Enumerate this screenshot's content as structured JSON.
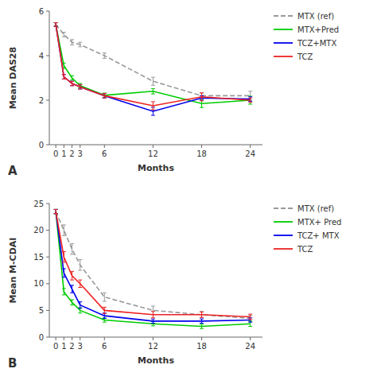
{
  "chart_data": [
    {
      "type": "line",
      "xlabel": "Months",
      "ylabel": "Mean DAS28",
      "annotations": [
        "A"
      ],
      "x": [
        0,
        1,
        2,
        3,
        6,
        12,
        18,
        24
      ],
      "xlim": [
        -0.8,
        25.5
      ],
      "xticks": [
        0,
        1,
        2,
        3,
        6,
        12,
        18,
        24
      ],
      "ylim": [
        0,
        6
      ],
      "yticks": [
        0,
        2,
        4,
        6
      ],
      "grid": false,
      "legend": "right",
      "series": [
        {
          "name": "MTX (ref)",
          "color": "#999999",
          "line_style": "dashed",
          "values": [
            5.4,
            4.95,
            4.6,
            4.5,
            4.0,
            2.85,
            2.2,
            2.2
          ],
          "errors": [
            0.08,
            0.1,
            0.12,
            0.1,
            0.12,
            0.18,
            0.12,
            0.2
          ]
        },
        {
          "name": "MTX+Pred",
          "color": "#00CC00",
          "line_style": "solid",
          "values": [
            5.4,
            3.55,
            3.0,
            2.65,
            2.22,
            2.4,
            1.85,
            2.0
          ],
          "errors": [
            0.08,
            0.12,
            0.1,
            0.1,
            0.1,
            0.12,
            0.18,
            0.18
          ]
        },
        {
          "name": "TCZ+MTX",
          "color": "#0000EE",
          "line_style": "solid",
          "values": [
            5.4,
            3.05,
            2.75,
            2.6,
            2.2,
            1.5,
            2.1,
            2.05
          ],
          "errors": [
            0.08,
            0.1,
            0.1,
            0.1,
            0.1,
            0.18,
            0.1,
            0.1
          ]
        },
        {
          "name": "TCZ",
          "color": "#EE2222",
          "line_style": "solid",
          "values": [
            5.4,
            3.05,
            2.75,
            2.6,
            2.2,
            1.75,
            2.15,
            2.0
          ],
          "errors": [
            0.08,
            0.1,
            0.1,
            0.1,
            0.1,
            0.18,
            0.18,
            0.1
          ]
        }
      ]
    },
    {
      "type": "line",
      "xlabel": "Months",
      "ylabel": "Mean M-CDAI",
      "annotations": [
        "B"
      ],
      "x": [
        0,
        1,
        2,
        3,
        6,
        12,
        18,
        24
      ],
      "xlim": [
        -0.8,
        25.5
      ],
      "xticks": [
        0,
        1,
        2,
        3,
        6,
        12,
        18,
        24
      ],
      "ylim": [
        0,
        25
      ],
      "yticks": [
        0,
        5,
        10,
        15,
        20,
        25
      ],
      "grid": false,
      "legend": "right",
      "series": [
        {
          "name": "MTX (ref)",
          "color": "#999999",
          "line_style": "dashed",
          "values": [
            23.5,
            20.0,
            16.5,
            13.5,
            7.5,
            5.0,
            4.2,
            3.5
          ],
          "errors": [
            0.4,
            1.0,
            1.0,
            1.0,
            0.8,
            0.8,
            0.6,
            0.6
          ]
        },
        {
          "name": "MTX+ Pred",
          "color": "#00CC00",
          "line_style": "solid",
          "values": [
            23.5,
            8.5,
            6.5,
            5.0,
            3.2,
            2.5,
            2.0,
            2.5
          ],
          "errors": [
            0.4,
            0.6,
            0.5,
            0.5,
            0.4,
            0.4,
            0.4,
            0.5
          ]
        },
        {
          "name": "TCZ+ MTX",
          "color": "#0000EE",
          "line_style": "solid",
          "values": [
            23.5,
            12.0,
            9.0,
            6.0,
            4.0,
            3.0,
            3.0,
            3.2
          ],
          "errors": [
            0.4,
            0.8,
            0.7,
            0.6,
            0.5,
            0.4,
            0.4,
            0.4
          ]
        },
        {
          "name": "TCZ",
          "color": "#EE2222",
          "line_style": "solid",
          "values": [
            23.5,
            15.0,
            11.5,
            10.0,
            5.0,
            4.2,
            4.2,
            3.8
          ],
          "errors": [
            0.4,
            1.0,
            0.8,
            0.7,
            0.6,
            0.6,
            0.5,
            0.5
          ]
        }
      ]
    }
  ]
}
